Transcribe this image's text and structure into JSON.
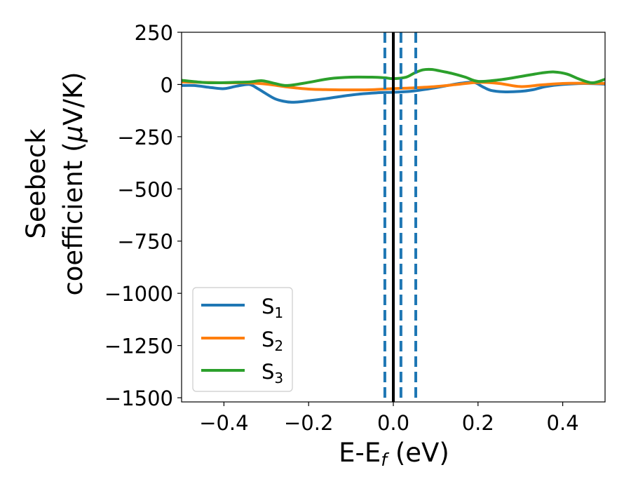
{
  "chart_data": {
    "type": "line",
    "xlabel": "E-E",
    "xlabel_sub": "f",
    "xlabel_unit": " (eV)",
    "ylabel_line1": "Seebeck",
    "ylabel_line2": "coefficient  (",
    "ylabel_mu": "μ",
    "ylabel_unit": "V/K)",
    "xlim": [
      -0.5,
      0.5
    ],
    "ylim": [
      -1520,
      250
    ],
    "xticks": [
      -0.4,
      -0.2,
      0.0,
      0.2,
      0.4
    ],
    "xtick_labels": [
      "−0.4",
      "−0.2",
      "0.0",
      "0.2",
      "0.4"
    ],
    "yticks": [
      250,
      0,
      -250,
      -500,
      -750,
      -1000,
      -1250,
      -1500
    ],
    "ytick_labels": [
      "250",
      "0",
      "−250",
      "−500",
      "−750",
      "−1000",
      "−1250",
      "−1500"
    ],
    "legend_position": "lower-left",
    "vlines": [
      {
        "x": 0.0,
        "style": "solid",
        "color": "#000000"
      },
      {
        "x": -0.02,
        "style": "dashed",
        "color": "#1f77b4"
      },
      {
        "x": 0.018,
        "style": "dashed",
        "color": "#1f77b4"
      },
      {
        "x": 0.053,
        "style": "dashed",
        "color": "#1f77b4"
      }
    ],
    "series": [
      {
        "name": "S",
        "sub": "1",
        "color": "#1f77b4",
        "x": [
          -0.5,
          -0.47,
          -0.43,
          -0.4,
          -0.37,
          -0.34,
          -0.32,
          -0.3,
          -0.28,
          -0.26,
          -0.24,
          -0.22,
          -0.2,
          -0.16,
          -0.12,
          -0.08,
          -0.04,
          0.0,
          0.04,
          0.08,
          0.12,
          0.16,
          0.19,
          0.21,
          0.23,
          0.26,
          0.3,
          0.33,
          0.36,
          0.4,
          0.45,
          0.5
        ],
        "y": [
          -5,
          -5,
          -15,
          -20,
          -8,
          0,
          -20,
          -45,
          -68,
          -80,
          -85,
          -83,
          -78,
          -68,
          -56,
          -46,
          -40,
          -37,
          -33,
          -22,
          -8,
          6,
          10,
          -10,
          -28,
          -35,
          -33,
          -25,
          -10,
          0,
          5,
          2
        ]
      },
      {
        "name": "S",
        "sub": "2",
        "color": "#ff7f0e",
        "x": [
          -0.5,
          -0.45,
          -0.4,
          -0.35,
          -0.3,
          -0.25,
          -0.2,
          -0.15,
          -0.1,
          -0.05,
          0.0,
          0.05,
          0.1,
          0.15,
          0.2,
          0.25,
          0.3,
          0.35,
          0.4,
          0.45,
          0.5
        ],
        "y": [
          12,
          10,
          8,
          8,
          2,
          -12,
          -22,
          -25,
          -26,
          -25,
          -20,
          -16,
          -10,
          0,
          10,
          5,
          -10,
          -2,
          5,
          6,
          5
        ]
      },
      {
        "name": "S",
        "sub": "3",
        "color": "#2ca02c",
        "x": [
          -0.5,
          -0.45,
          -0.42,
          -0.38,
          -0.34,
          -0.31,
          -0.28,
          -0.25,
          -0.2,
          -0.15,
          -0.1,
          -0.05,
          -0.02,
          0.0,
          0.03,
          0.05,
          0.07,
          0.09,
          0.11,
          0.14,
          0.17,
          0.2,
          0.25,
          0.3,
          0.35,
          0.38,
          0.41,
          0.44,
          0.47,
          0.5
        ],
        "y": [
          20,
          10,
          8,
          10,
          12,
          18,
          5,
          -5,
          10,
          28,
          35,
          35,
          32,
          28,
          35,
          55,
          70,
          72,
          65,
          52,
          35,
          15,
          22,
          38,
          55,
          60,
          50,
          25,
          8,
          25
        ]
      }
    ]
  }
}
